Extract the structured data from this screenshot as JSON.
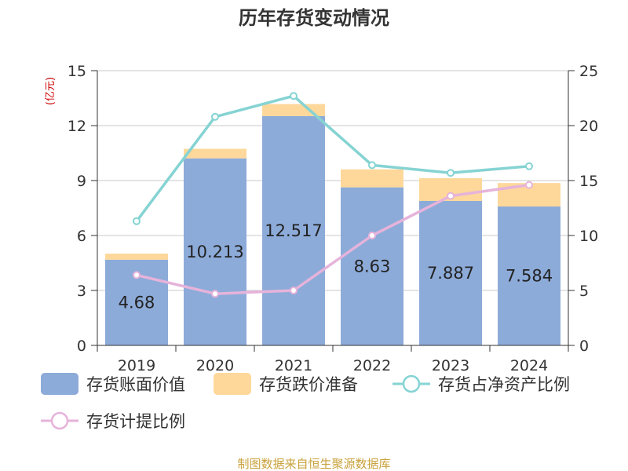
{
  "chart_data": {
    "type": "bar",
    "title": "历年存货变动情况",
    "categories": [
      "2019",
      "2020",
      "2021",
      "2022",
      "2023",
      "2024"
    ],
    "y_left": {
      "unit": "(亿元)",
      "lim": [
        0,
        15
      ],
      "ticks": [
        0,
        3,
        6,
        9,
        12,
        15
      ]
    },
    "y_right": {
      "lim": [
        0,
        25
      ],
      "ticks": [
        0,
        5,
        10,
        15,
        20,
        25
      ]
    },
    "series": [
      {
        "name": "存货账面价值",
        "kind": "bar",
        "stack": "main",
        "axis": "left",
        "values": [
          4.68,
          10.213,
          12.517,
          8.63,
          7.887,
          7.584
        ],
        "labels": [
          "4.68",
          "10.213",
          "12.517",
          "8.63",
          "7.887",
          "7.584"
        ]
      },
      {
        "name": "存货跌价准备",
        "kind": "bar",
        "stack": "main",
        "axis": "left",
        "values": [
          0.33,
          0.52,
          0.66,
          0.98,
          1.24,
          1.28
        ]
      },
      {
        "name": "存货占净资产比例",
        "kind": "line",
        "axis": "right",
        "values": [
          11.3,
          20.8,
          22.7,
          16.4,
          15.7,
          16.3
        ]
      },
      {
        "name": "存货计提比例",
        "kind": "line",
        "axis": "right",
        "values": [
          6.4,
          4.7,
          5.0,
          10.0,
          13.6,
          14.6
        ]
      }
    ],
    "grid": true,
    "legend": "bottom"
  },
  "colors": {
    "book_value": "#8dabd9",
    "provision": "#fdd89a",
    "ratio_net_assets": "#86d3d3",
    "provision_ratio": "#e6b3da",
    "grid": "#c8c8c8",
    "axis": "#333333",
    "unit": "#cc0000",
    "source": "#c9a23c"
  },
  "source": "制图数据来自恒生聚源数据库"
}
